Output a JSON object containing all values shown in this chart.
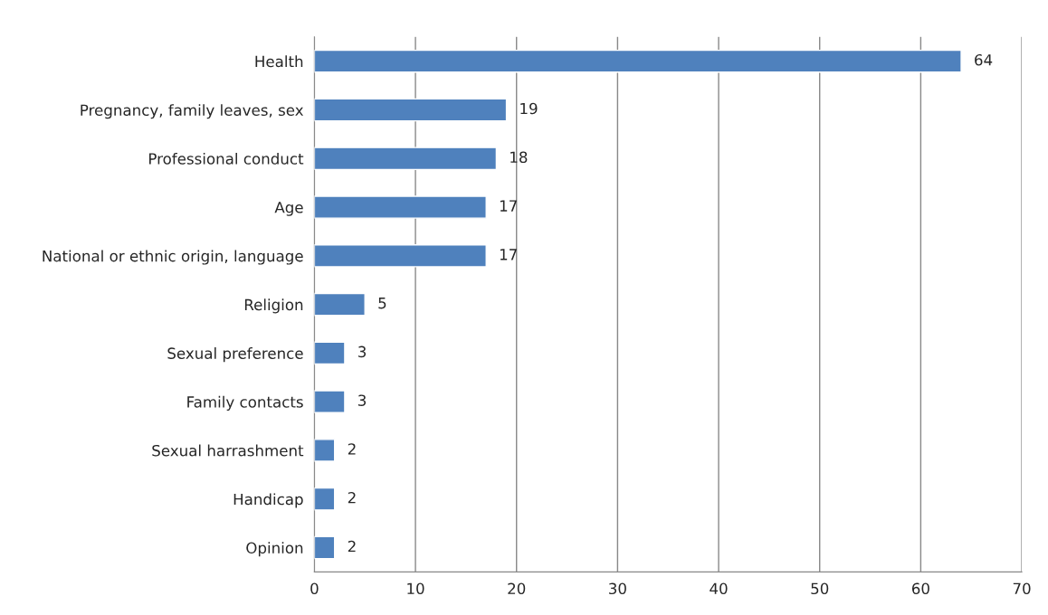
{
  "chart_data": {
    "type": "bar",
    "orientation": "horizontal",
    "categories": [
      "Health",
      "Pregnancy, family leaves, sex",
      "Professional conduct",
      "Age",
      "National or ethnic origin, language",
      "Religion",
      "Sexual preference",
      "Family contacts",
      "Sexual harrashment",
      "Handicap",
      "Opinion"
    ],
    "values": [
      64,
      19,
      18,
      17,
      17,
      5,
      3,
      3,
      2,
      2,
      2
    ],
    "color": "#4f81bd",
    "xlim": [
      0,
      70
    ],
    "xticks": [
      0,
      10,
      20,
      30,
      40,
      50,
      60,
      70
    ],
    "grid": "x",
    "data_labels": true,
    "legend": false
  }
}
